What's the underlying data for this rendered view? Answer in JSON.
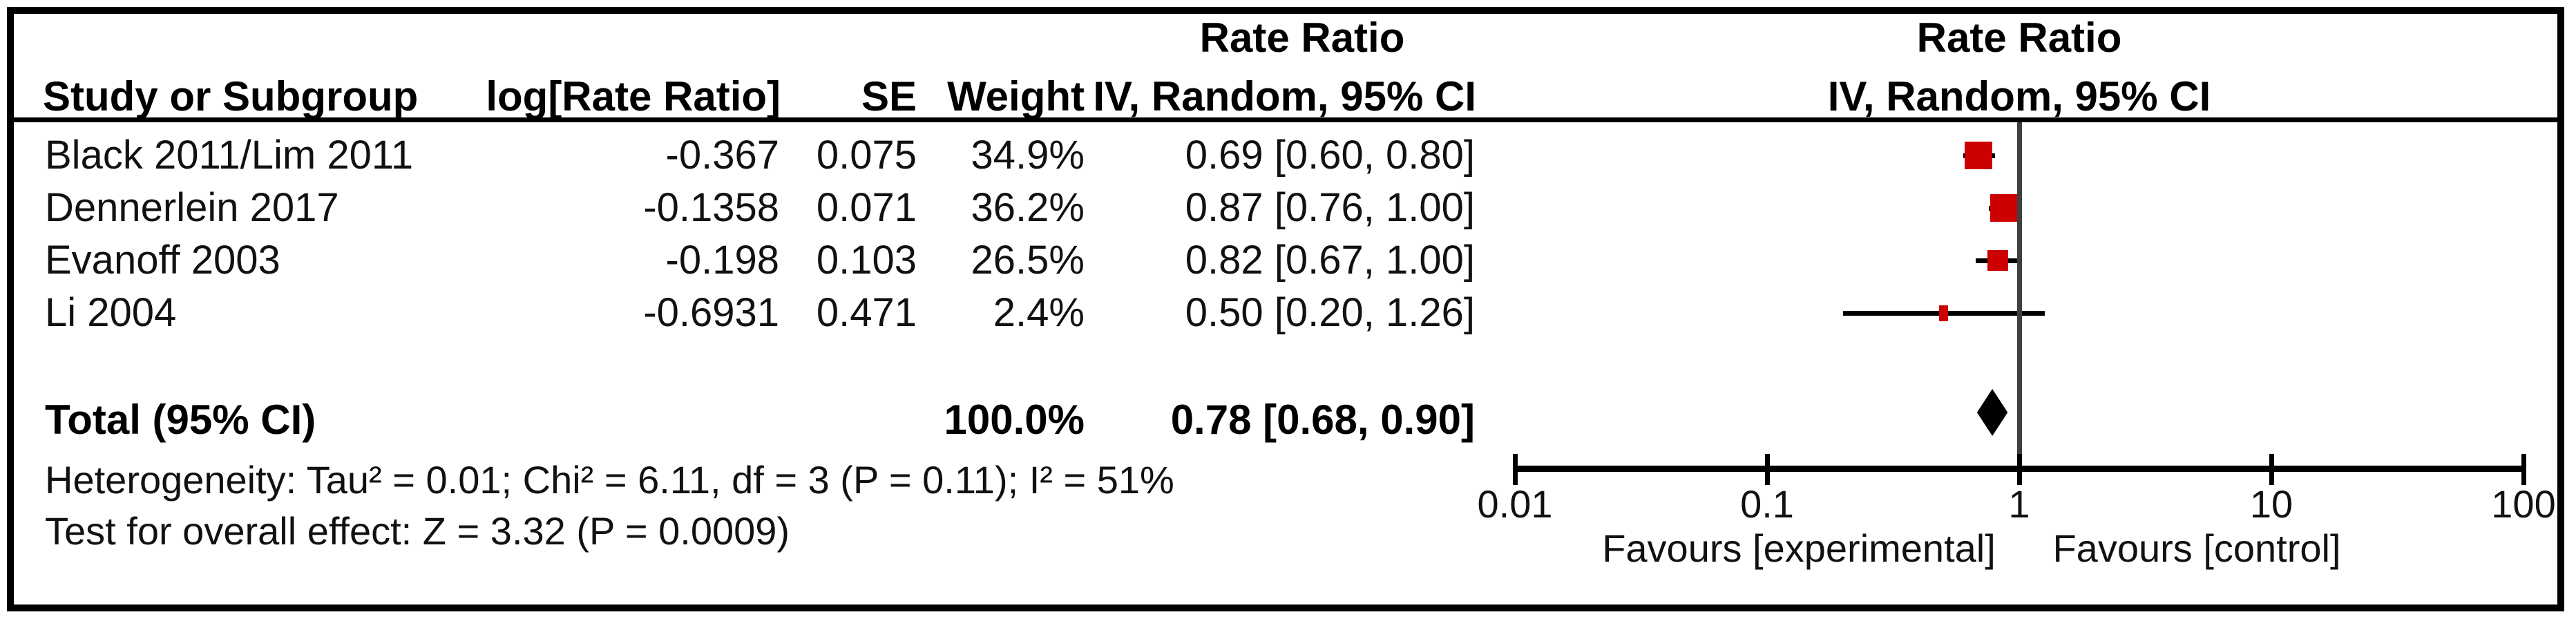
{
  "colors": {
    "marker": "#CC0000",
    "diamond": "#000000",
    "axis_line": "#000000",
    "null_line": "#3f3f3f"
  },
  "header": {
    "effect_measure": "Rate Ratio",
    "col_study": "Study or Subgroup",
    "col_log": "log[Rate Ratio]",
    "col_se": "SE",
    "col_weight": "Weight",
    "col_ci": "IV, Random, 95% CI",
    "plot_title": "Rate Ratio",
    "plot_subtitle": "IV, Random, 95% CI"
  },
  "table": {
    "rows": [
      {
        "name": "Black 2011/Lim 2011",
        "log": "-0.367",
        "se": "0.075",
        "weight": "34.9%",
        "ci": "0.69 [0.60, 0.80]"
      },
      {
        "name": "Dennerlein 2017",
        "log": "-0.1358",
        "se": "0.071",
        "weight": "36.2%",
        "ci": "0.87 [0.76, 1.00]"
      },
      {
        "name": "Evanoff 2003",
        "log": "-0.198",
        "se": "0.103",
        "weight": "26.5%",
        "ci": "0.82 [0.67, 1.00]"
      },
      {
        "name": "Li 2004",
        "log": "-0.6931",
        "se": "0.471",
        "weight": "2.4%",
        "ci": "0.50 [0.20, 1.26]"
      }
    ],
    "total": {
      "label": "Total (95% CI)",
      "weight": "100.0%",
      "ci": "0.78 [0.68, 0.90]"
    }
  },
  "footer": {
    "heterogeneity": "Heterogeneity: Tau² = 0.01; Chi² = 6.11, df = 3 (P = 0.11); I² = 51%",
    "overall_effect": "Test for overall effect: Z = 3.32 (P = 0.0009)"
  },
  "axis": {
    "tick_labels": [
      "0.01",
      "0.1",
      "1",
      "10",
      "100"
    ],
    "favours_left": "Favours [experimental]",
    "favours_right": "Favours [control]"
  },
  "chart_data": {
    "type": "forest",
    "scale": "log10",
    "title": "Rate Ratio, IV, Random, 95% CI",
    "x_axis": {
      "ticks": [
        0.01,
        0.1,
        1,
        10,
        100
      ],
      "range": [
        0.01,
        100
      ],
      "null_line": 1
    },
    "studies": [
      {
        "name": "Black 2011/Lim 2011",
        "log_rate_ratio": -0.367,
        "se": 0.075,
        "weight_pct": 34.9,
        "rate_ratio": 0.69,
        "ci_low": 0.6,
        "ci_high": 0.8
      },
      {
        "name": "Dennerlein 2017",
        "log_rate_ratio": -0.1358,
        "se": 0.071,
        "weight_pct": 36.2,
        "rate_ratio": 0.87,
        "ci_low": 0.76,
        "ci_high": 1.0
      },
      {
        "name": "Evanoff 2003",
        "log_rate_ratio": -0.198,
        "se": 0.103,
        "weight_pct": 26.5,
        "rate_ratio": 0.82,
        "ci_low": 0.67,
        "ci_high": 1.0
      },
      {
        "name": "Li 2004",
        "log_rate_ratio": -0.6931,
        "se": 0.471,
        "weight_pct": 2.4,
        "rate_ratio": 0.5,
        "ci_low": 0.2,
        "ci_high": 1.26
      }
    ],
    "total": {
      "name": "Total (95% CI)",
      "rate_ratio": 0.78,
      "ci_low": 0.68,
      "ci_high": 0.9,
      "weight_pct": 100.0,
      "heterogeneity": {
        "tau2": 0.01,
        "chi2": 6.11,
        "df": 3,
        "p": 0.11,
        "i2_pct": 51
      },
      "overall_effect": {
        "z": 3.32,
        "p": 0.0009
      }
    }
  }
}
